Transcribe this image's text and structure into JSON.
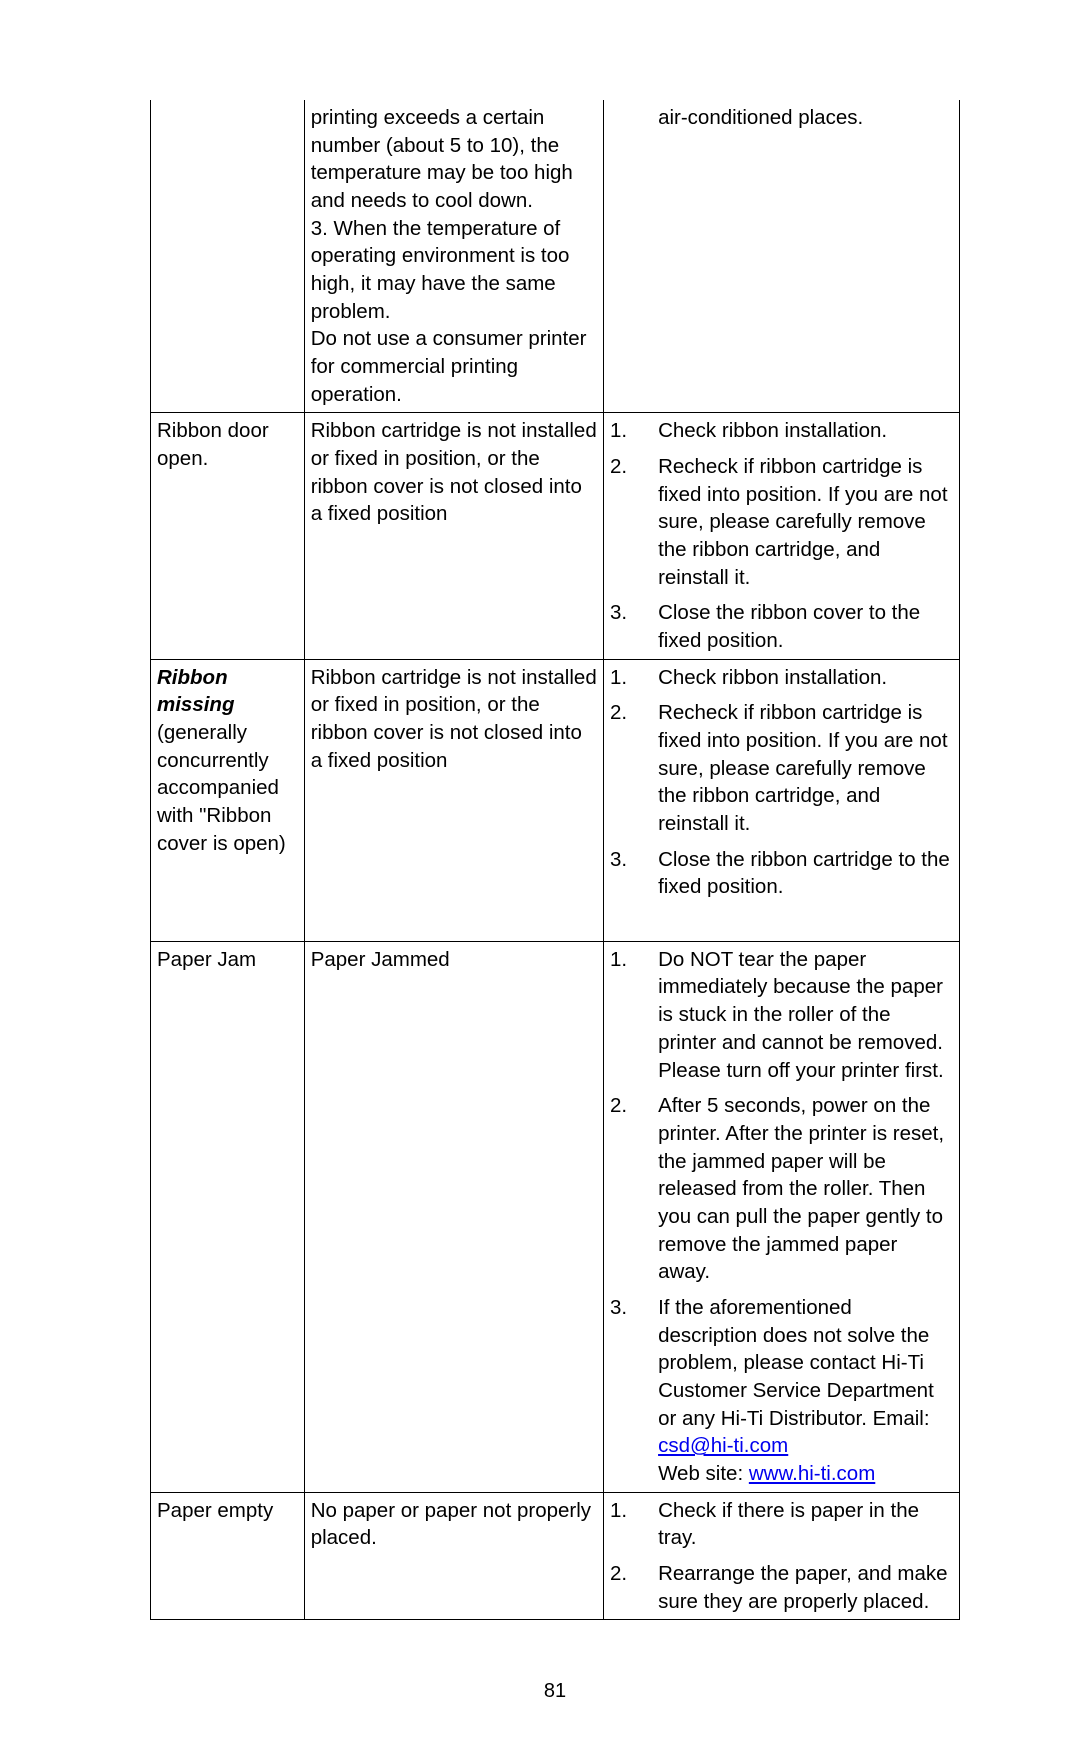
{
  "page_number": "81",
  "table": {
    "border_color": "#000000",
    "font_size_pt": 15,
    "rows": [
      {
        "issue": "",
        "cause": "printing exceeds a certain number (about 5 to 10), the temperature may be too high and needs to cool down.\n3.    When the temperature of operating environment is too high, it may have the same problem.\nDo not use a consumer printer for commercial printing operation.",
        "solutions": [
          {
            "num": "",
            "text": "air-conditioned places."
          }
        ],
        "issue_open_top": true,
        "cause_open_top": true,
        "sol_open_top": true
      },
      {
        "issue": "Ribbon door open.",
        "cause": "Ribbon cartridge is not installed or fixed in position, or the ribbon cover is not closed into a fixed position",
        "solutions": [
          {
            "num": "1.",
            "text": "Check ribbon installation."
          },
          {
            "num": "2.",
            "text": "Recheck if ribbon cartridge is fixed into position. If you are not sure, please carefully remove the ribbon cartridge, and reinstall it."
          },
          {
            "num": "3.",
            "text": "Close the ribbon cover to the fixed position."
          }
        ]
      },
      {
        "issue_html": true,
        "issue_parts": {
          "bold": "Ribbon missing",
          "rest": " (generally concurrently accompanied with \"Ribbon cover is open)"
        },
        "cause": "Ribbon cartridge is not installed or fixed in position, or the ribbon cover is not closed into a fixed position",
        "solutions": [
          {
            "num": "1.",
            "text": "Check ribbon installation."
          },
          {
            "num": "2.",
            "text": "Recheck if ribbon cartridge is fixed into position. If you are not sure, please carefully remove the ribbon cartridge, and reinstall it."
          },
          {
            "num": "3.",
            "text": "Close the ribbon cartridge to the fixed position."
          }
        ],
        "trailing_gap": true
      },
      {
        "issue": "Paper Jam",
        "cause": "Paper Jammed",
        "solutions": [
          {
            "num": "1.",
            "text": "Do NOT tear the paper immediately because the paper is stuck in the roller of the printer and cannot be removed.    Please turn off your printer first."
          },
          {
            "num": "2.",
            "text": "After 5 seconds, power on the printer. After the printer is reset, the jammed paper will be released from the roller. Then you can pull the paper gently to remove the jammed paper away."
          },
          {
            "num": "3.",
            "text_html": true,
            "pre": "If the aforementioned description does not solve the problem, please contact Hi-Ti Customer Service Department or any Hi-Ti Distributor. Email: ",
            "link1_text": "csd@hi-ti.com",
            "link1_href": "mailto:csd@hi-ti.com",
            "mid": "\nWeb site: ",
            "link2_text": "www.hi-ti.com",
            "link2_href": "http://www.hi-ti.com"
          }
        ]
      },
      {
        "issue": "Paper empty",
        "cause": "No paper or paper not properly placed.",
        "solutions": [
          {
            "num": "1.",
            "text": "Check if there is paper in the tray."
          },
          {
            "num": "2.",
            "text": "Rearrange the paper, and make sure they are properly placed."
          }
        ]
      }
    ]
  }
}
